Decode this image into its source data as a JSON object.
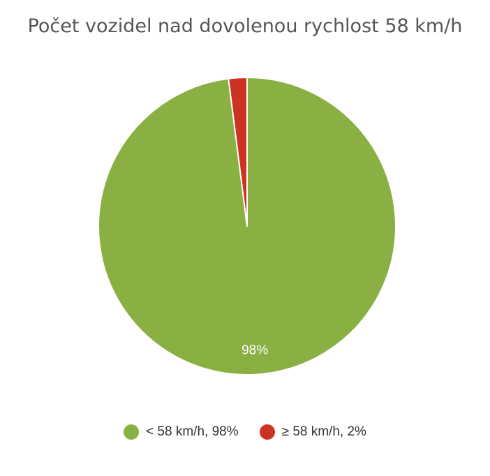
{
  "chart_data": {
    "type": "pie",
    "title": "Počet vozidel nad dovolenou rychlost 58 km/h",
    "slices": [
      {
        "name": "< 58 km/h",
        "value": 98,
        "label": "98%",
        "legend": "< 58 km/h, 98%",
        "color": "#8aaf42"
      },
      {
        "name": "≥ 58 km/h",
        "value": 2,
        "label": "",
        "legend": "≥ 58 km/h, 2%",
        "color": "#cc3322"
      }
    ],
    "legend_position": "bottom"
  }
}
